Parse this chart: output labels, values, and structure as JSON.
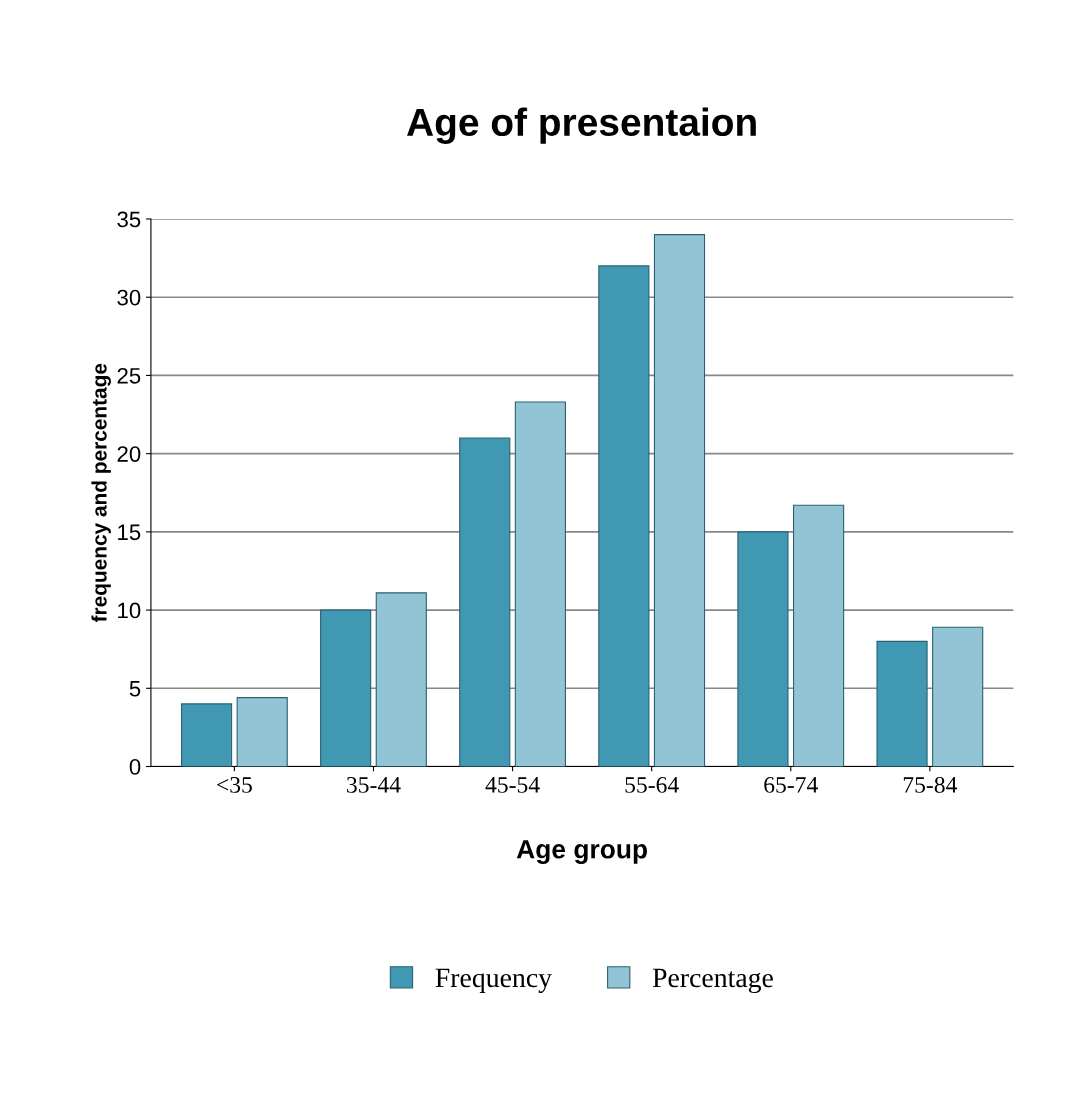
{
  "chart_data": {
    "type": "bar",
    "title": "Age of presentaion",
    "xlabel": "Age group",
    "ylabel": "frequency and percentage",
    "categories": [
      "<35",
      "35-44",
      "45-54",
      "55-64",
      "65-74",
      "75-84"
    ],
    "series": [
      {
        "name": "Frequency",
        "color": "#4198b2",
        "values": [
          4,
          10,
          21,
          32,
          15,
          8
        ]
      },
      {
        "name": "Percentage",
        "color": "#93c4d6",
        "values": [
          4.4,
          11.1,
          23.3,
          34,
          16.7,
          8.9
        ]
      }
    ],
    "ylim": [
      0,
      35
    ],
    "yticks": [
      0,
      5,
      10,
      15,
      20,
      25,
      30,
      35
    ],
    "grid": "y",
    "legend": "bottom"
  }
}
